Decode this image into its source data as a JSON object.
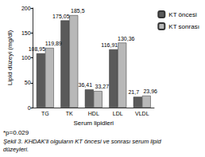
{
  "chart_data": {
    "type": "bar",
    "categories": [
      "TG",
      "TK",
      "HDL",
      "LDL",
      "VLDL"
    ],
    "series": [
      {
        "name": "KT öncesi",
        "color": "#5a5a5a",
        "values": [
          108.95,
          175.05,
          36.41,
          116.91,
          21.7
        ],
        "value_labels": [
          "108,95",
          "175,05",
          "36,41",
          "116,91",
          "21,7"
        ]
      },
      {
        "name": "KT sonrası",
        "color": "#b8b8b8",
        "values": [
          119.89,
          185.5,
          33.27,
          130.36,
          23.96
        ],
        "value_labels": [
          "119,89",
          "185,5",
          "33,27",
          "130,36",
          "23,96"
        ]
      }
    ],
    "xlabel": "Serum lipidleri",
    "ylabel": "Lipid düzeyi (mg/dl)",
    "ylim": [
      0,
      200
    ],
    "yticks": [
      0,
      50,
      100,
      150,
      200
    ],
    "grid": false,
    "legend": "right",
    "data_labels": true,
    "annotations": [
      "*p=0.029"
    ],
    "caption": "Şekil 3. KHDAK'li olguların KT öncesi ve sonrası serum lipid düzeyleri."
  }
}
